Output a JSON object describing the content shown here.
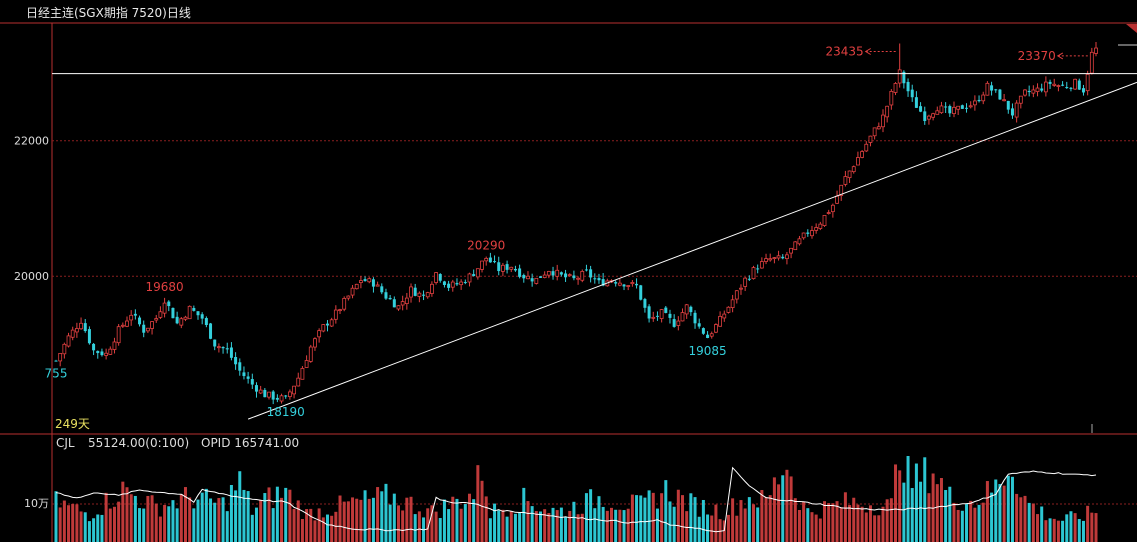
{
  "window": {
    "title": "日经主连(SGX期指 7520)日线"
  },
  "colors": {
    "up": "#e04040",
    "down": "#34d0dc",
    "grid": "#8a1f1f",
    "frame": "#b83030",
    "line": "#ffffff",
    "panel_text": "#dddddd",
    "days_text": "#e8e060"
  },
  "chart_data": {
    "type": "candlestick",
    "title": "日经主连(SGX期指 7520)日线",
    "price_axis": {
      "ticks": [
        20000,
        22000
      ],
      "ylim": [
        17700,
        23900
      ]
    },
    "annotations": [
      {
        "label": "19680",
        "value": 19680,
        "bar": 26,
        "kind": "high"
      },
      {
        "label": "20290",
        "value": 20290,
        "bar": 103,
        "kind": "high"
      },
      {
        "label": "23435",
        "value": 23435,
        "bar": 202,
        "kind": "high",
        "arrow": true
      },
      {
        "label": "23370",
        "value": 23370,
        "bar": 248,
        "kind": "high",
        "arrow": true
      },
      {
        "label": "18190",
        "value": 18190,
        "bar": 55,
        "kind": "low"
      },
      {
        "label": "19085",
        "value": 19085,
        "bar": 156,
        "kind": "low"
      },
      {
        "label": "755",
        "value": 18755,
        "bar": 0,
        "kind": "low"
      }
    ],
    "days_label": "249天",
    "horizontal_line": 22990,
    "trendline": {
      "start_bar": 46,
      "start_value": 17890,
      "end_bar": 260,
      "end_value": 22890
    },
    "volume": {
      "name": "CJL",
      "value_text": "55124.00(0:100)",
      "opid_text": "OPID 165741.00",
      "tick_label": "10万"
    },
    "path": [
      [
        0,
        18750
      ],
      [
        3,
        19100
      ],
      [
        6,
        19350
      ],
      [
        9,
        18900
      ],
      [
        12,
        18850
      ],
      [
        15,
        19200
      ],
      [
        18,
        19450
      ],
      [
        21,
        19200
      ],
      [
        24,
        19380
      ],
      [
        26,
        19660
      ],
      [
        29,
        19300
      ],
      [
        32,
        19520
      ],
      [
        35,
        19380
      ],
      [
        38,
        19000
      ],
      [
        41,
        18900
      ],
      [
        44,
        18600
      ],
      [
        47,
        18400
      ],
      [
        50,
        18250
      ],
      [
        53,
        18200
      ],
      [
        55,
        18190
      ],
      [
        58,
        18500
      ],
      [
        61,
        18950
      ],
      [
        64,
        19250
      ],
      [
        67,
        19450
      ],
      [
        70,
        19700
      ],
      [
        73,
        19950
      ],
      [
        76,
        19900
      ],
      [
        79,
        19700
      ],
      [
        82,
        19550
      ],
      [
        85,
        19800
      ],
      [
        88,
        19700
      ],
      [
        91,
        20050
      ],
      [
        94,
        19850
      ],
      [
        97,
        19900
      ],
      [
        100,
        20050
      ],
      [
        103,
        20270
      ],
      [
        106,
        20100
      ],
      [
        109,
        20150
      ],
      [
        112,
        20000
      ],
      [
        115,
        19950
      ],
      [
        118,
        20100
      ],
      [
        121,
        20000
      ],
      [
        124,
        19950
      ],
      [
        127,
        20050
      ],
      [
        130,
        19900
      ],
      [
        133,
        19950
      ],
      [
        136,
        19900
      ],
      [
        139,
        19850
      ],
      [
        142,
        19350
      ],
      [
        145,
        19450
      ],
      [
        148,
        19300
      ],
      [
        151,
        19550
      ],
      [
        154,
        19250
      ],
      [
        156,
        19100
      ],
      [
        159,
        19350
      ],
      [
        162,
        19650
      ],
      [
        165,
        19950
      ],
      [
        168,
        20150
      ],
      [
        171,
        20250
      ],
      [
        174,
        20250
      ],
      [
        177,
        20450
      ],
      [
        180,
        20650
      ],
      [
        183,
        20800
      ],
      [
        186,
        21050
      ],
      [
        189,
        21450
      ],
      [
        192,
        21750
      ],
      [
        195,
        22050
      ],
      [
        198,
        22350
      ],
      [
        201,
        22850
      ],
      [
        202,
        23000
      ],
      [
        205,
        22600
      ],
      [
        208,
        22350
      ],
      [
        211,
        22500
      ],
      [
        214,
        22400
      ],
      [
        217,
        22500
      ],
      [
        220,
        22550
      ],
      [
        223,
        22800
      ],
      [
        226,
        22650
      ],
      [
        229,
        22400
      ],
      [
        232,
        22700
      ],
      [
        235,
        22750
      ],
      [
        238,
        22850
      ],
      [
        241,
        22800
      ],
      [
        244,
        22850
      ],
      [
        246,
        22750
      ],
      [
        248,
        23280
      ],
      [
        249,
        23350
      ]
    ],
    "vol_path": [
      [
        0,
        40
      ],
      [
        8,
        28
      ],
      [
        16,
        52
      ],
      [
        24,
        35
      ],
      [
        32,
        45
      ],
      [
        40,
        38
      ],
      [
        44,
        60
      ],
      [
        47,
        32
      ],
      [
        50,
        42
      ],
      [
        55,
        50
      ],
      [
        60,
        28
      ],
      [
        70,
        38
      ],
      [
        80,
        46
      ],
      [
        90,
        30
      ],
      [
        100,
        48
      ],
      [
        102,
        75
      ],
      [
        104,
        30
      ],
      [
        112,
        42
      ],
      [
        120,
        30
      ],
      [
        130,
        44
      ],
      [
        140,
        36
      ],
      [
        146,
        52
      ],
      [
        152,
        38
      ],
      [
        160,
        30
      ],
      [
        166,
        45
      ],
      [
        170,
        40
      ],
      [
        175,
        82
      ],
      [
        177,
        50
      ],
      [
        180,
        30
      ],
      [
        190,
        40
      ],
      [
        200,
        36
      ],
      [
        202,
        95
      ],
      [
        205,
        60
      ],
      [
        210,
        72
      ],
      [
        214,
        45
      ],
      [
        220,
        40
      ],
      [
        225,
        55
      ],
      [
        229,
        80
      ],
      [
        231,
        45
      ],
      [
        236,
        30
      ],
      [
        240,
        22
      ],
      [
        245,
        25
      ],
      [
        249,
        31
      ]
    ],
    "oi_path": [
      [
        0,
        0.52
      ],
      [
        5,
        0.45
      ],
      [
        10,
        0.52
      ],
      [
        15,
        0.48
      ],
      [
        20,
        0.55
      ],
      [
        25,
        0.52
      ],
      [
        30,
        0.5
      ],
      [
        33,
        0.4
      ],
      [
        35,
        0.55
      ],
      [
        40,
        0.5
      ],
      [
        45,
        0.45
      ],
      [
        50,
        0.42
      ],
      [
        55,
        0.4
      ],
      [
        60,
        0.25
      ],
      [
        65,
        0.12
      ],
      [
        72,
        0.06
      ],
      [
        80,
        0.05
      ],
      [
        89,
        0.06
      ],
      [
        91,
        0.45
      ],
      [
        94,
        0.4
      ],
      [
        100,
        0.38
      ],
      [
        105,
        0.3
      ],
      [
        112,
        0.27
      ],
      [
        120,
        0.22
      ],
      [
        130,
        0.18
      ],
      [
        138,
        0.14
      ],
      [
        144,
        0.17
      ],
      [
        148,
        0.1
      ],
      [
        153,
        0.08
      ],
      [
        156,
        0.04
      ],
      [
        158,
        0.02
      ],
      [
        160,
        0.05
      ],
      [
        162,
        0.82
      ],
      [
        166,
        0.6
      ],
      [
        170,
        0.45
      ],
      [
        175,
        0.42
      ],
      [
        182,
        0.38
      ],
      [
        190,
        0.32
      ],
      [
        200,
        0.3
      ],
      [
        210,
        0.33
      ],
      [
        220,
        0.4
      ],
      [
        225,
        0.5
      ],
      [
        228,
        0.75
      ],
      [
        234,
        0.78
      ],
      [
        240,
        0.76
      ],
      [
        245,
        0.74
      ],
      [
        249,
        0.74
      ]
    ]
  }
}
